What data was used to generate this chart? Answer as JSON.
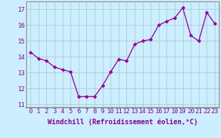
{
  "x": [
    0,
    1,
    2,
    3,
    4,
    5,
    6,
    7,
    8,
    9,
    10,
    11,
    12,
    13,
    14,
    15,
    16,
    17,
    18,
    19,
    20,
    21,
    22,
    23
  ],
  "y": [
    14.3,
    13.9,
    13.75,
    13.35,
    13.2,
    13.05,
    11.5,
    11.5,
    11.5,
    12.2,
    13.05,
    13.85,
    13.75,
    14.8,
    15.0,
    15.1,
    16.0,
    16.25,
    16.45,
    17.1,
    15.35,
    15.0,
    16.8,
    16.1
  ],
  "line_color": "#990099",
  "marker": "D",
  "marker_size": 2.5,
  "bg_color": "#cceeff",
  "grid_color": "#aacccc",
  "xlabel": "Windchill (Refroidissement éolien,°C)",
  "xlabel_fontsize": 7,
  "ylim": [
    10.8,
    17.5
  ],
  "xlim": [
    -0.5,
    23.5
  ],
  "yticks": [
    11,
    12,
    13,
    14,
    15,
    16,
    17
  ],
  "xticks": [
    0,
    1,
    2,
    3,
    4,
    5,
    6,
    7,
    8,
    9,
    10,
    11,
    12,
    13,
    14,
    15,
    16,
    17,
    18,
    19,
    20,
    21,
    22,
    23
  ],
  "tick_fontsize": 6.5,
  "line_width": 1.0,
  "spine_color": "#888888"
}
